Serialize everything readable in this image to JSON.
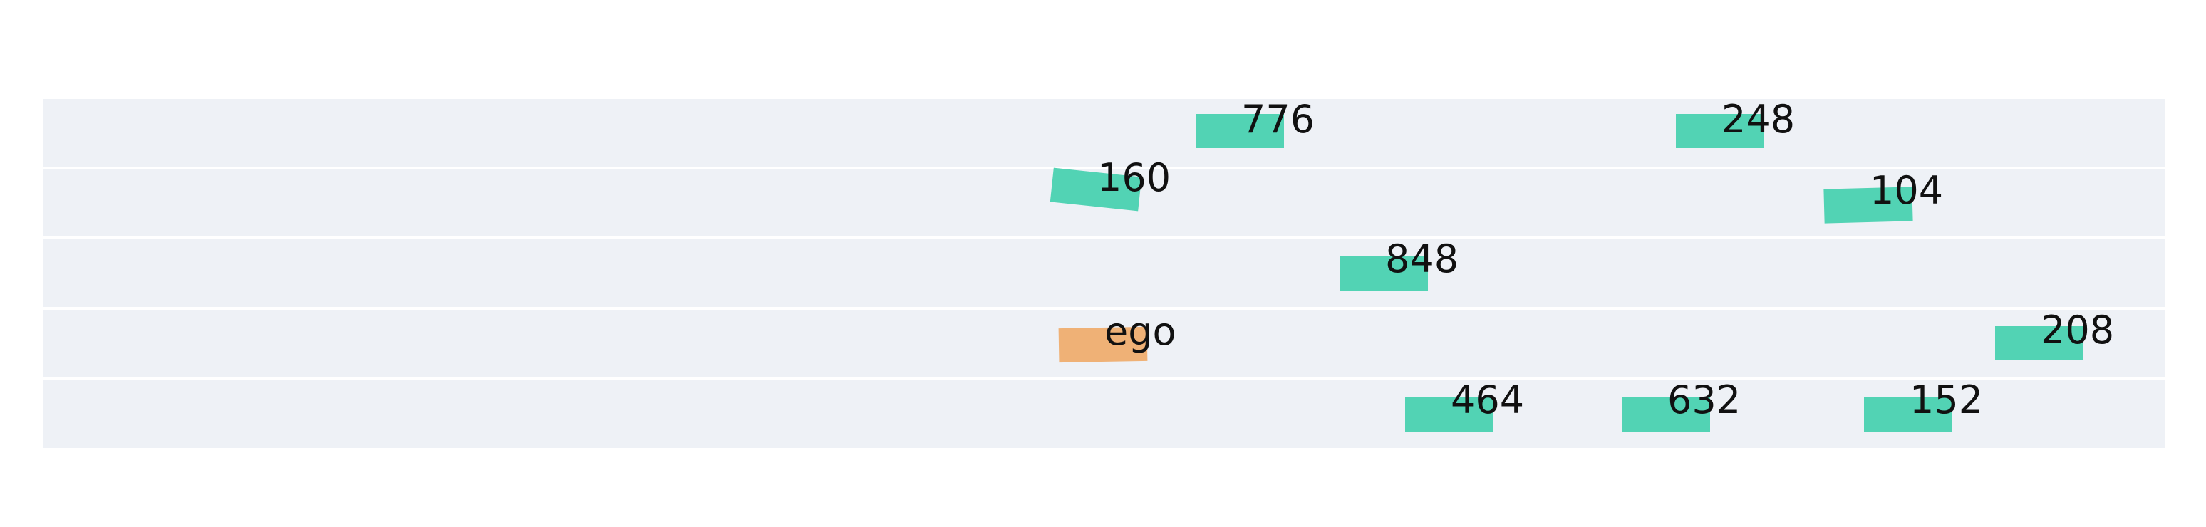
{
  "scene": {
    "lane_count": 5,
    "lane_color": "#eef1f6",
    "background": "#ffffff",
    "ego_color": "#efb176",
    "vehicle_color": "#52d3b4"
  },
  "vehicles": [
    {
      "id": "776",
      "label": "776",
      "lane": 0,
      "ego": false
    },
    {
      "id": "248",
      "label": "248",
      "lane": 0,
      "ego": false
    },
    {
      "id": "160",
      "label": "160",
      "lane": 1,
      "ego": false
    },
    {
      "id": "104",
      "label": "104",
      "lane": 1,
      "ego": false
    },
    {
      "id": "848",
      "label": "848",
      "lane": 2,
      "ego": false
    },
    {
      "id": "ego",
      "label": "ego",
      "lane": 3,
      "ego": true
    },
    {
      "id": "208",
      "label": "208",
      "lane": 3,
      "ego": false
    },
    {
      "id": "464",
      "label": "464",
      "lane": 4,
      "ego": false
    },
    {
      "id": "632",
      "label": "632",
      "lane": 4,
      "ego": false
    },
    {
      "id": "152",
      "label": "152",
      "lane": 4,
      "ego": false
    }
  ]
}
